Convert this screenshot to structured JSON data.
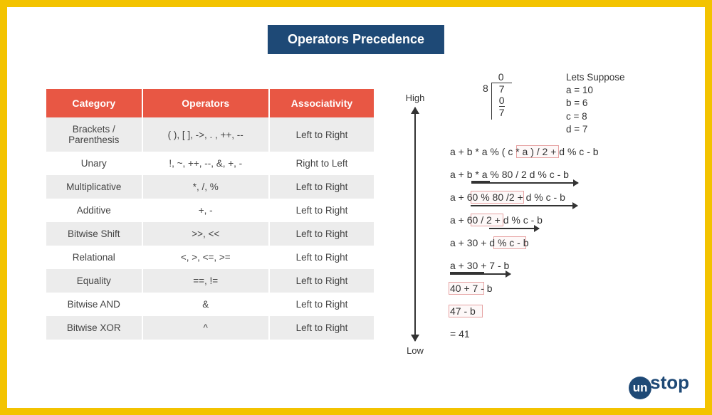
{
  "title": "Operators Precedence",
  "table": {
    "headers": [
      "Category",
      "Operators",
      "Associativity"
    ],
    "rows": [
      [
        "Brackets /\nParenthesis",
        "( ), [ ], ->, . , ++, --",
        "Left to Right"
      ],
      [
        "Unary",
        "!, ~, ++, --, &, +, -",
        "Right to Left"
      ],
      [
        "Multiplicative",
        "*, /, %",
        "Left to Right"
      ],
      [
        "Additive",
        "+, -",
        "Left to Right"
      ],
      [
        "Bitwise Shift",
        ">>, <<",
        "Left to Right"
      ],
      [
        "Relational",
        "<, >, <=, >=",
        "Left to Right"
      ],
      [
        "Equality",
        "==, !=",
        "Left to Right"
      ],
      [
        "Bitwise AND",
        "&",
        "Left to Right"
      ],
      [
        "Bitwise XOR",
        "^",
        "Left to Right"
      ]
    ]
  },
  "axis": {
    "high": "High",
    "low": "Low"
  },
  "division": {
    "divisor": "8",
    "quotient": "0",
    "lines": [
      "7",
      "0",
      "7"
    ]
  },
  "suppose": {
    "title": "Lets Suppose",
    "vars": [
      "a = 10",
      "b = 6",
      "c = 8",
      "d = 7"
    ]
  },
  "steps": [
    "a + b * a % ( c * a ) / 2 + d % c - b",
    "a + b * a % 80 / 2 d % c - b",
    "a + 60 % 80 /2 + d % c - b",
    "a + 60 / 2 + d % c - b",
    "a + 30 + d % c - b",
    "a + 30 + 7 - b",
    "40 + 7 - b",
    "47 - b",
    "= 41"
  ],
  "logo": {
    "prefix": "un",
    "suffix": "stop"
  },
  "colors": {
    "border": "#f3c300",
    "banner": "#1e4976",
    "header": "#e85744",
    "row_odd": "#ececec",
    "hl_border": "#e6a2a2"
  }
}
